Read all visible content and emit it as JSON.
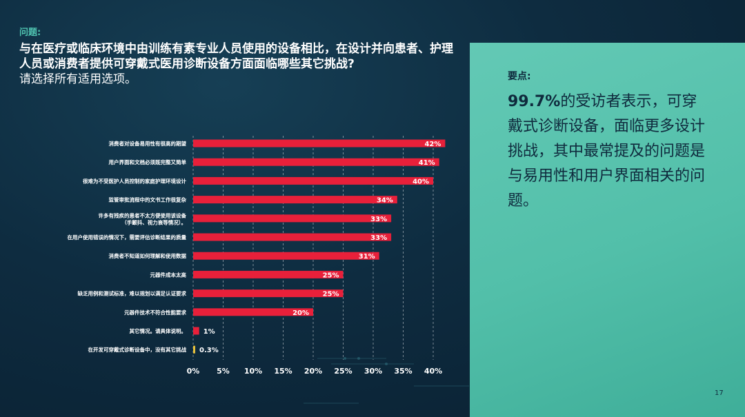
{
  "question": {
    "label": "问题:",
    "text": "与在医疗或临床环境中由训练有素专业人员使用的设备相比，在设计并向患者、护理人员或消费者提供可穿戴式医用诊断设备方面面临哪些其它挑战?",
    "note": "请选择所有适用选项。"
  },
  "key_points": {
    "title": "要点:",
    "highlight": "99.7%",
    "text": "的受访者表示，可穿戴式诊断设备，面临更多设计挑战，其中最常提及的问题是与易用性和用户界面相关的问题。"
  },
  "page_number": "17",
  "colors": {
    "bar": "#e8203a",
    "bar_small": "#e8c23a",
    "panel": "#58c3ad",
    "label_accent": "#4fc3b0"
  },
  "chart_data": {
    "type": "bar",
    "orientation": "horizontal",
    "categories": [
      [
        "消费者对设备易用性有很高的期望"
      ],
      [
        "用户界面和文档必须既完整又简单"
      ],
      [
        "很难为不受医护人员控制的家庭护理环境设计"
      ],
      [
        "监管审批流程中的文书工作很复杂"
      ],
      [
        "许多有残疾的患者不太方便使用该设备",
        "（手颤抖、视力衰等情况）。"
      ],
      [
        "在用户使用错误的情况下，需要评估诊断结果的质量"
      ],
      [
        "消费者不知道如何理解和使用数据"
      ],
      [
        "元器件成本太高"
      ],
      [
        "缺乏用例和测试标准，难以规划以满足认证要求"
      ],
      [
        "元器件技术不符合性能要求"
      ],
      [
        "其它情况。请具体说明。"
      ],
      [
        "在开发可穿戴式诊断设备中，没有其它挑战"
      ]
    ],
    "values": [
      42,
      41,
      40,
      34,
      33,
      33,
      31,
      25,
      25,
      20,
      1,
      0.3
    ],
    "value_labels": [
      "42%",
      "41%",
      "40%",
      "34%",
      "33%",
      "33%",
      "31%",
      "25%",
      "25%",
      "20%",
      "1%",
      "0.3%"
    ],
    "xlim": [
      0,
      40
    ],
    "xticks": [
      0,
      5,
      10,
      15,
      20,
      25,
      30,
      35,
      40
    ],
    "xtick_labels": [
      "0%",
      "5%",
      "10%",
      "15%",
      "20%",
      "25%",
      "30%",
      "35%",
      "40%"
    ],
    "grid": true,
    "legend": "none"
  }
}
